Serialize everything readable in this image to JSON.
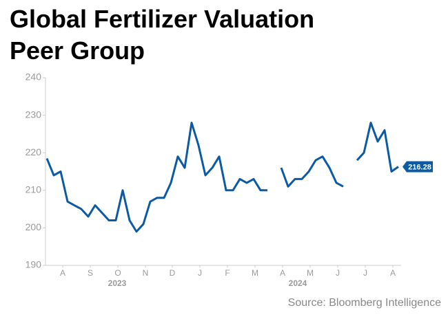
{
  "chart_data": {
    "type": "line",
    "title": "Global Fertilizer Valuation Peer Group",
    "source": "Source: Bloomberg Intelligence",
    "color": "#0b5aa6",
    "values": [
      218.5,
      214,
      215,
      207,
      206,
      205,
      203,
      206,
      204,
      202,
      202,
      210,
      202,
      199,
      201,
      207,
      208,
      208,
      212,
      219,
      216,
      228,
      222,
      214,
      216,
      219,
      210,
      210,
      213,
      212,
      213,
      210,
      210,
      null,
      216,
      211,
      213,
      213,
      215,
      218,
      219,
      216,
      212,
      211,
      null,
      218,
      220,
      228,
      223,
      226,
      215,
      216.28
    ],
    "last_value_label": "216.28",
    "xlim": [
      -0.2,
      51.4
    ],
    "xticks": [
      {
        "value": 2.3,
        "label": "A"
      },
      {
        "value": 6.3,
        "label": "S"
      },
      {
        "value": 10.3,
        "label": "O"
      },
      {
        "value": 14.3,
        "label": "N"
      },
      {
        "value": 18.2,
        "label": "D"
      },
      {
        "value": 22.2,
        "label": "J"
      },
      {
        "value": 26.2,
        "label": "F"
      },
      {
        "value": 30.2,
        "label": "M"
      },
      {
        "value": 34.2,
        "label": "A"
      },
      {
        "value": 38.2,
        "label": "M"
      },
      {
        "value": 42.2,
        "label": "J"
      },
      {
        "value": 46.2,
        "label": "J"
      },
      {
        "value": 50.2,
        "label": "A"
      }
    ],
    "year_labels": [
      {
        "value": 10.2,
        "label": "2023"
      },
      {
        "value": 36.4,
        "label": "2024"
      }
    ],
    "ylim": [
      190,
      240
    ],
    "yticks": [
      190,
      200,
      210,
      220,
      230,
      240
    ]
  }
}
